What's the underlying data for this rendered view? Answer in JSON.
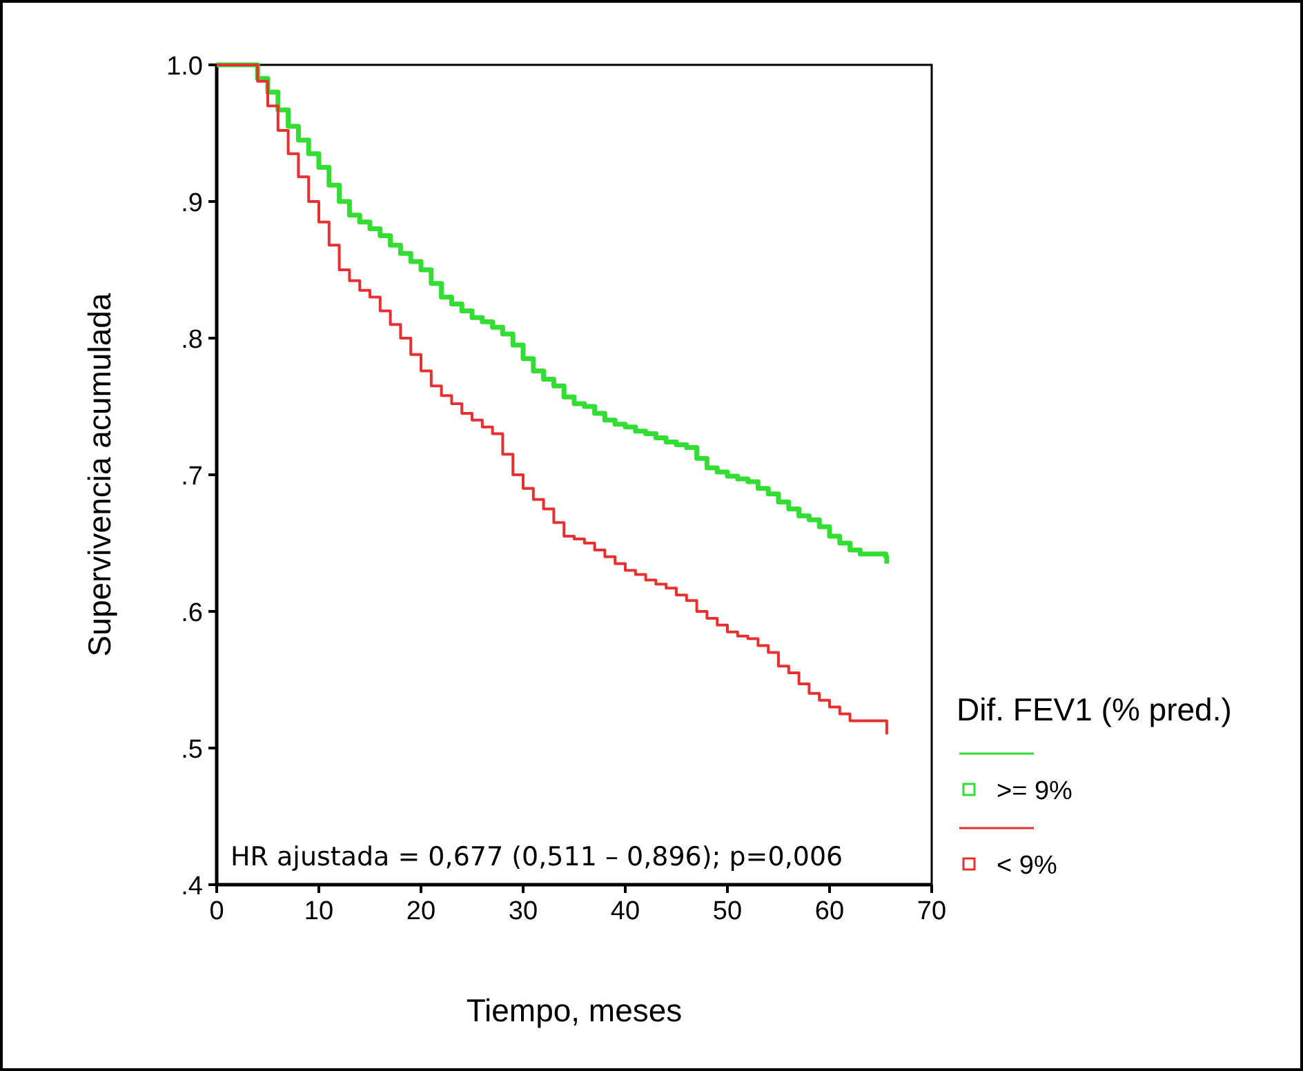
{
  "chart_data": {
    "type": "step",
    "xlabel": "Tiempo, meses",
    "ylabel": "Supervivencia acumulada",
    "legend_title": "Dif. FEV1 (% pred.)",
    "legend": "right",
    "xlim": [
      0,
      70
    ],
    "xticks": [
      0,
      10,
      20,
      30,
      40,
      50,
      60,
      70
    ],
    "ylim": [
      0.4,
      1.0
    ],
    "yticks": [
      {
        "value": 0.4,
        "label": ".4"
      },
      {
        "value": 0.5,
        "label": ".5"
      },
      {
        "value": 0.6,
        "label": ".6"
      },
      {
        "value": 0.7,
        "label": ".7"
      },
      {
        "value": 0.8,
        "label": ".8"
      },
      {
        "value": 0.9,
        "label": ".9"
      },
      {
        "value": 1.0,
        "label": "1.0"
      }
    ],
    "annotations": [
      "HR ajustada = 0,677 (0,511 – 0,896); p=0,006"
    ],
    "series": [
      {
        "name": ">= 9%",
        "color": "#33dd33",
        "x": [
          0,
          3.4,
          4,
          5,
          6,
          7,
          8,
          9,
          10,
          11,
          12,
          13,
          14,
          15,
          16,
          17,
          18,
          19,
          20,
          21,
          22,
          23,
          24,
          25,
          26,
          27,
          28,
          29,
          30,
          31,
          32,
          33,
          34,
          35,
          36,
          37,
          38,
          39,
          40,
          41,
          42,
          43,
          44,
          45,
          46,
          47,
          48,
          49,
          50,
          51,
          52,
          53,
          54,
          55,
          56,
          57,
          58,
          59,
          60,
          61,
          62,
          63,
          65.5,
          65.6
        ],
        "values": [
          1.0,
          1.0,
          0.99,
          0.98,
          0.967,
          0.955,
          0.945,
          0.935,
          0.925,
          0.912,
          0.9,
          0.89,
          0.885,
          0.88,
          0.875,
          0.868,
          0.862,
          0.856,
          0.85,
          0.84,
          0.83,
          0.825,
          0.82,
          0.815,
          0.812,
          0.808,
          0.803,
          0.795,
          0.785,
          0.776,
          0.77,
          0.765,
          0.757,
          0.752,
          0.75,
          0.745,
          0.74,
          0.737,
          0.735,
          0.732,
          0.73,
          0.727,
          0.724,
          0.722,
          0.72,
          0.712,
          0.705,
          0.702,
          0.699,
          0.697,
          0.695,
          0.69,
          0.686,
          0.68,
          0.675,
          0.67,
          0.667,
          0.662,
          0.655,
          0.65,
          0.645,
          0.642,
          0.64,
          0.635
        ]
      },
      {
        "name": "< 9%",
        "color": "#e83030",
        "x": [
          0,
          3.4,
          4,
          5,
          6,
          7,
          8,
          9,
          10,
          11,
          12,
          13,
          14,
          15,
          16,
          17,
          18,
          19,
          20,
          21,
          22,
          23,
          24,
          25,
          26,
          27,
          28,
          29,
          30,
          31,
          32,
          33,
          34,
          35,
          36,
          37,
          38,
          39,
          40,
          41,
          42,
          43,
          44,
          45,
          46,
          47,
          48,
          49,
          50,
          51,
          52,
          53,
          54,
          55,
          56,
          57,
          58,
          59,
          60,
          61,
          62,
          65.5,
          65.6
        ],
        "values": [
          1.0,
          1.0,
          0.988,
          0.97,
          0.952,
          0.935,
          0.918,
          0.9,
          0.885,
          0.868,
          0.85,
          0.842,
          0.835,
          0.83,
          0.82,
          0.81,
          0.8,
          0.788,
          0.776,
          0.765,
          0.758,
          0.752,
          0.745,
          0.74,
          0.735,
          0.73,
          0.715,
          0.7,
          0.69,
          0.682,
          0.675,
          0.665,
          0.655,
          0.653,
          0.65,
          0.645,
          0.64,
          0.635,
          0.63,
          0.627,
          0.623,
          0.62,
          0.617,
          0.612,
          0.608,
          0.6,
          0.595,
          0.59,
          0.585,
          0.582,
          0.58,
          0.575,
          0.57,
          0.56,
          0.555,
          0.547,
          0.54,
          0.535,
          0.53,
          0.525,
          0.52,
          0.52,
          0.51
        ]
      }
    ]
  }
}
